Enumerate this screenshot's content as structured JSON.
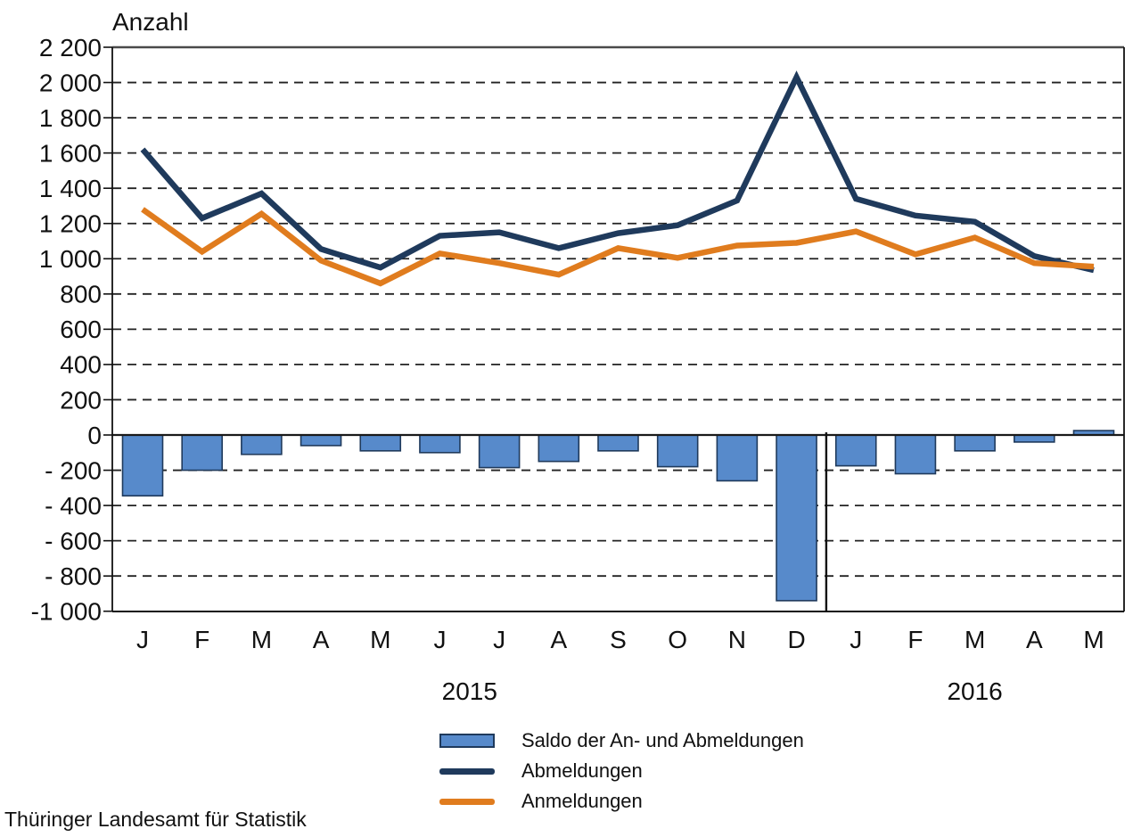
{
  "header": {
    "title": "Anzahl"
  },
  "footer": {
    "source": "Thüringer Landesamt für Statistik"
  },
  "colors": {
    "bar_fill": "#578ACB",
    "bar_border": "#1F3A5C",
    "abmeldungen_line": "#1F3A5C",
    "anmeldungen_line": "#E07C1E",
    "grid": "#222222",
    "axis": "#111111",
    "top_border": "#4a4a4a",
    "text": "#111111"
  },
  "chart_data": {
    "type": "combo (bar + line)",
    "title": "Anzahl",
    "categories": [
      "J",
      "F",
      "M",
      "A",
      "M",
      "J",
      "J",
      "A",
      "S",
      "O",
      "N",
      "D",
      "J",
      "F",
      "M",
      "A",
      "M"
    ],
    "year_groups": [
      {
        "label": "2015",
        "from": 0,
        "to": 11
      },
      {
        "label": "2016",
        "from": 12,
        "to": 16
      }
    ],
    "series": [
      {
        "name": "Saldo der An- und Abmeldungen",
        "type": "bar",
        "color": "#578ACB",
        "border_color": "#1F3A5C",
        "values": [
          -345,
          -200,
          -110,
          -60,
          -90,
          -100,
          -185,
          -150,
          -90,
          -180,
          -260,
          -940,
          -175,
          -220,
          -90,
          -40,
          25
        ]
      },
      {
        "name": "Abmeldungen",
        "type": "line",
        "color": "#1F3A5C",
        "values": [
          1620,
          1230,
          1370,
          1055,
          950,
          1130,
          1150,
          1060,
          1145,
          1190,
          1330,
          2030,
          1340,
          1245,
          1210,
          1015,
          935
        ]
      },
      {
        "name": "Anmeldungen",
        "type": "line",
        "color": "#E07C1E",
        "values": [
          1280,
          1040,
          1255,
          990,
          860,
          1030,
          975,
          910,
          1060,
          1005,
          1075,
          1090,
          1155,
          1025,
          1120,
          975,
          955
        ]
      }
    ],
    "ylim": [
      -1000,
      2200
    ],
    "ytick_step": 200,
    "ytick_labels": [
      "2 200",
      "2 000",
      "1 800",
      "1 600",
      "1 400",
      "1 200",
      "1 000",
      "800",
      "600",
      "400",
      "200",
      "0",
      "- 200",
      "- 400",
      "- 600",
      "- 800",
      "-1 000"
    ],
    "grid": "dashed horizontal gridlines every 200, solid line at 0",
    "legend_position": "bottom-center",
    "year_separator_between": [
      11,
      12
    ]
  }
}
